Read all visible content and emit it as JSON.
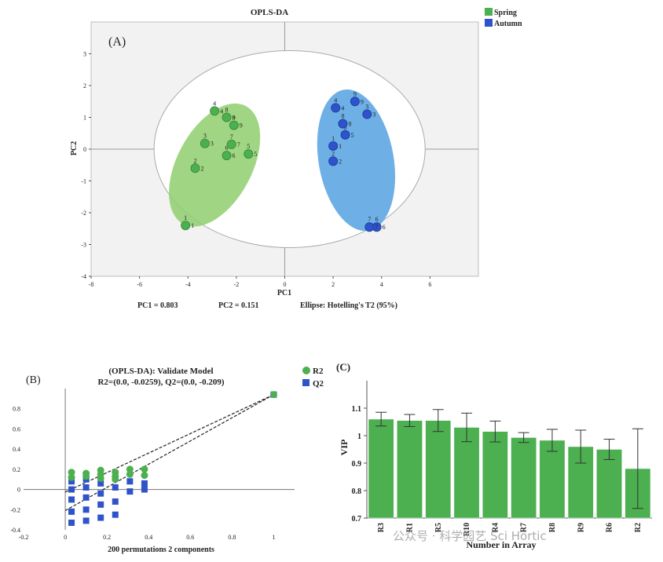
{
  "chart_data": [
    {
      "type": "scatter",
      "panel_label": "(A)",
      "title": "OPLS-DA",
      "xlabel": "PC1",
      "ylabel": "PC2",
      "xlim": [
        -8,
        8
      ],
      "ylim": [
        -4,
        4
      ],
      "xticks": [
        -8,
        -6,
        -4,
        -2,
        0,
        2,
        4,
        6
      ],
      "yticks": [
        -4,
        -3,
        -2,
        -1,
        0,
        1,
        2,
        3
      ],
      "legend_position": "top-right",
      "series": [
        {
          "name": "Spring",
          "color": "#4caf50",
          "points": [
            {
              "x": -4.1,
              "y": -2.4,
              "label": "1"
            },
            {
              "x": -3.7,
              "y": -0.6,
              "label": "2"
            },
            {
              "x": -3.3,
              "y": 0.18,
              "label": "3"
            },
            {
              "x": -2.9,
              "y": 1.2,
              "label": "4"
            },
            {
              "x": -1.5,
              "y": -0.15,
              "label": "5"
            },
            {
              "x": -2.4,
              "y": -0.2,
              "label": "6"
            },
            {
              "x": -2.2,
              "y": 0.15,
              "label": "7"
            },
            {
              "x": -2.4,
              "y": 1.0,
              "label": "8"
            },
            {
              "x": -2.1,
              "y": 0.75,
              "label": "9"
            }
          ]
        },
        {
          "name": "Autumn",
          "color": "#2f54c9",
          "points": [
            {
              "x": 2.0,
              "y": 0.1,
              "label": "1"
            },
            {
              "x": 2.0,
              "y": -0.38,
              "label": "2"
            },
            {
              "x": 3.4,
              "y": 1.1,
              "label": "3"
            },
            {
              "x": 2.1,
              "y": 1.3,
              "label": "4"
            },
            {
              "x": 2.5,
              "y": 0.45,
              "label": "5"
            },
            {
              "x": 3.8,
              "y": -2.45,
              "label": "6"
            },
            {
              "x": 3.5,
              "y": -2.45,
              "label": "7"
            },
            {
              "x": 2.4,
              "y": 0.8,
              "label": "8"
            },
            {
              "x": 2.9,
              "y": 1.5,
              "label": "9"
            }
          ]
        }
      ],
      "annotations": [
        "PC1 = 0.803",
        "PC2 = 0.151",
        "Ellipse: Hotelling's T2 (95%)"
      ]
    },
    {
      "type": "scatter",
      "panel_label": "(B)",
      "title": "(OPLS-DA): Validate Model",
      "subtitle": "R2=(0.0, -0.0259), Q2=(0.0, -0.209)",
      "xlabel": "200 permutations 2 components",
      "xlim": [
        -0.2,
        1.1
      ],
      "ylim": [
        -0.4,
        1.0
      ],
      "xticks": [
        -0.2,
        0,
        0.2,
        0.4,
        0.6,
        0.8,
        1
      ],
      "yticks": [
        -0.4,
        -0.2,
        0,
        0.2,
        0.4,
        0.6,
        0.8
      ],
      "legend_position": "top-right",
      "series": [
        {
          "name": "R2",
          "color": "#4caf50",
          "points": [
            {
              "x": 0.03,
              "y": 0.17
            },
            {
              "x": 0.1,
              "y": 0.16
            },
            {
              "x": 0.17,
              "y": 0.19
            },
            {
              "x": 0.24,
              "y": 0.17
            },
            {
              "x": 0.31,
              "y": 0.2
            },
            {
              "x": 0.38,
              "y": 0.2
            },
            {
              "x": 0.03,
              "y": 0.12
            },
            {
              "x": 0.1,
              "y": 0.13
            },
            {
              "x": 0.17,
              "y": 0.15
            },
            {
              "x": 0.24,
              "y": 0.13
            },
            {
              "x": 0.31,
              "y": 0.15
            },
            {
              "x": 0.38,
              "y": 0.14
            },
            {
              "x": 0.17,
              "y": 0.11
            },
            {
              "x": 0.24,
              "y": 0.1
            },
            {
              "x": 1.0,
              "y": 0.94
            }
          ]
        },
        {
          "name": "Q2",
          "color": "#2f54c9",
          "points": [
            {
              "x": 0.03,
              "y": -0.33
            },
            {
              "x": 0.03,
              "y": -0.22
            },
            {
              "x": 0.03,
              "y": -0.1
            },
            {
              "x": 0.03,
              "y": 0.0
            },
            {
              "x": 0.03,
              "y": 0.08
            },
            {
              "x": 0.1,
              "y": -0.31
            },
            {
              "x": 0.1,
              "y": -0.2
            },
            {
              "x": 0.1,
              "y": -0.08
            },
            {
              "x": 0.1,
              "y": 0.02
            },
            {
              "x": 0.1,
              "y": 0.1
            },
            {
              "x": 0.17,
              "y": -0.28
            },
            {
              "x": 0.17,
              "y": -0.15
            },
            {
              "x": 0.17,
              "y": -0.04
            },
            {
              "x": 0.17,
              "y": 0.06
            },
            {
              "x": 0.24,
              "y": -0.25
            },
            {
              "x": 0.24,
              "y": -0.12
            },
            {
              "x": 0.24,
              "y": 0.02
            },
            {
              "x": 0.31,
              "y": -0.02
            },
            {
              "x": 0.31,
              "y": 0.08
            },
            {
              "x": 0.38,
              "y": 0.0
            },
            {
              "x": 0.38,
              "y": 0.06
            },
            {
              "x": 1.0,
              "y": 0.94
            }
          ]
        }
      ],
      "regression_lines": [
        {
          "name": "R2",
          "x1": 0.0,
          "y1": -0.026,
          "x2": 1.0,
          "y2": 0.94
        },
        {
          "name": "Q2",
          "x1": 0.0,
          "y1": -0.209,
          "x2": 1.0,
          "y2": 0.94
        }
      ]
    },
    {
      "type": "bar",
      "panel_label": "(C)",
      "xlabel": "Number in Array",
      "ylabel": "VIP",
      "ylim": [
        0.7,
        1.2
      ],
      "yticks": [
        0.7,
        0.8,
        0.9,
        1.0,
        1.1
      ],
      "ytick_labels": [
        "0.7",
        "0.8",
        "0.9",
        "1",
        "1.1"
      ],
      "categories": [
        "R3",
        "R1",
        "R5",
        "R10",
        "R4",
        "R7",
        "R8",
        "R9",
        "R6",
        "R2"
      ],
      "values": [
        1.06,
        1.055,
        1.055,
        1.03,
        1.015,
        0.993,
        0.983,
        0.96,
        0.95,
        0.88
      ],
      "errors": [
        0.025,
        0.022,
        0.04,
        0.052,
        0.038,
        0.018,
        0.04,
        0.06,
        0.037,
        0.145
      ],
      "color": "#4caf50"
    }
  ],
  "watermark": "公众号 · 科学园艺 Sci Hortic"
}
